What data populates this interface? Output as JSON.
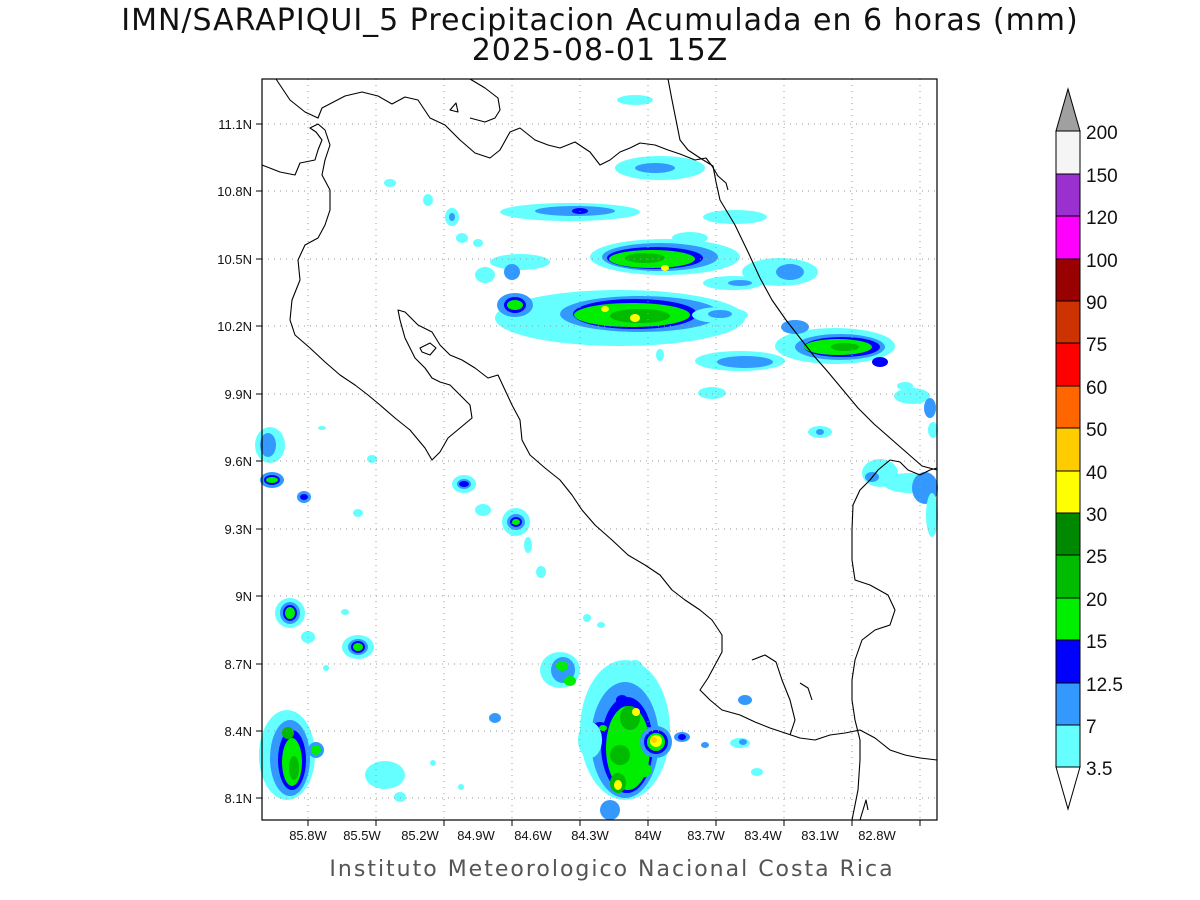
{
  "map": {
    "title": "IMN/SARAPIQUI_5 Precipitacion Acumulada en 6 horas (mm)",
    "subtitle": "2025-08-01 15Z",
    "footer": "Instituto Meteorologico Nacional Costa Rica",
    "lon_labels": [
      "85.8W",
      "85.5W",
      "85.2W",
      "84.9W",
      "84.6W",
      "84.3W",
      "84W",
      "83.7W",
      "83.4W",
      "83.1W",
      "82.8W"
    ],
    "lat_labels": [
      "11.1N",
      "10.8N",
      "10.5N",
      "10.2N",
      "9.9N",
      "9.6N",
      "9.3N",
      "9N",
      "8.7N",
      "8.4N",
      "8.1N"
    ]
  },
  "colorbar": {
    "labels": [
      "200",
      "150",
      "120",
      "100",
      "90",
      "75",
      "60",
      "50",
      "40",
      "30",
      "25",
      "20",
      "15",
      "12.5",
      "7",
      "3.5"
    ],
    "colors": {
      "over": "#a0a0a0",
      "c150_200": "#f5f5f5",
      "c120_150": "#9b30d0",
      "c100_120": "#ff00ff",
      "c90_100": "#990000",
      "c75_90": "#cc3300",
      "c60_75": "#ff0000",
      "c50_60": "#ff6600",
      "c40_50": "#ffcc00",
      "c30_40": "#ffff00",
      "c25_30": "#008800",
      "c20_25": "#00bb00",
      "c15_20": "#00ee00",
      "c12_15": "#0000ff",
      "c7_12": "#3399ff",
      "c3_7": "#66ffff"
    }
  }
}
